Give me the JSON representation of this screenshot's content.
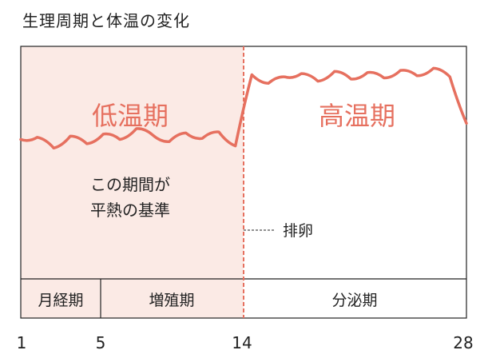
{
  "title": "生理周期と体温の変化",
  "colors": {
    "accent": "#e6705f",
    "low_phase_fill": "#fbeae5",
    "border": "#222222",
    "dashed": "#e6705f"
  },
  "phases": {
    "low": "低温期",
    "high": "高温期"
  },
  "note_lines": [
    "この期間が",
    "平熱の基準"
  ],
  "ovulation_label": "排卵",
  "cycle_sections": [
    "月経期",
    "増殖期",
    "分泌期"
  ],
  "day_ticks": [
    "1",
    "5",
    "14",
    "28"
  ],
  "chart_data": {
    "type": "line",
    "x": [
      1,
      2,
      3,
      4,
      5,
      6,
      7,
      8,
      9,
      10,
      11,
      12,
      13,
      14,
      15,
      16,
      17,
      18,
      19,
      20,
      21,
      22,
      23,
      24,
      25,
      26,
      27,
      28
    ],
    "series": [
      {
        "values": [
          0.3,
          0.32,
          0.22,
          0.33,
          0.26,
          0.35,
          0.3,
          0.4,
          0.34,
          0.28,
          0.36,
          0.31,
          0.37,
          0.24,
          0.9,
          0.82,
          0.88,
          0.91,
          0.84,
          0.93,
          0.86,
          0.92,
          0.87,
          0.94,
          0.89,
          0.96,
          0.88,
          0.45
        ]
      }
    ],
    "ylim": [
      0,
      1
    ],
    "annotations": [
      "低温期",
      "高温期",
      "排卵"
    ]
  }
}
